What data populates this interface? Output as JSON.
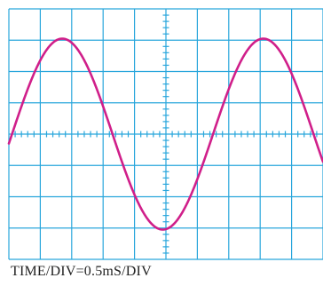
{
  "chart_data": {
    "type": "line",
    "title": "",
    "xlabel": "TIME/DIV=0.5mS/DIV",
    "ylabel": "",
    "x_divisions": 10,
    "y_divisions": 8,
    "minor_ticks_per_division": 5,
    "time_per_div_ms": 0.5,
    "xlim": [
      0,
      10
    ],
    "ylim": [
      -4,
      4
    ],
    "grid": true,
    "series": [
      {
        "color": "#d01f8a",
        "waveform": "sine",
        "amplitude_div": 3.05,
        "period_div": 6.4,
        "peak_x_div": [
          1.7,
          8.1
        ],
        "trough_x_div": 4.9,
        "zero_crossings_x_div": [
          0.1,
          3.3,
          6.5,
          9.7
        ]
      }
    ]
  },
  "colors": {
    "grid": "#29a6dc",
    "trace": "#d01f8a",
    "background": "#ffffff"
  }
}
